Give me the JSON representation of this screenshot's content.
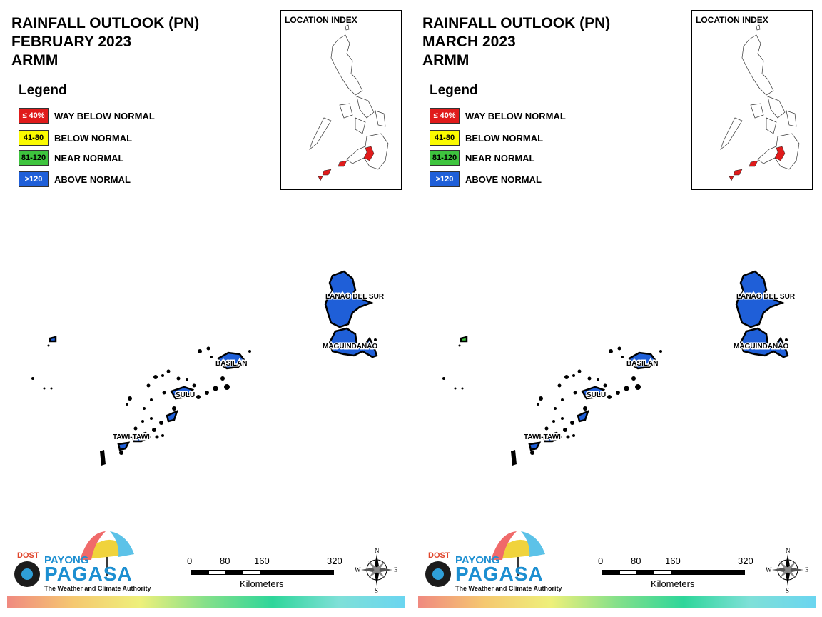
{
  "panels": [
    {
      "title_line1": "RAINFALL OUTLOOK (PN)",
      "title_line2": "FEBRUARY 2023",
      "title_line3": "ARMM"
    },
    {
      "title_line1": "RAINFALL OUTLOOK (PN)",
      "title_line2": "MARCH 2023",
      "title_line3": "ARMM"
    }
  ],
  "legend": {
    "heading": "Legend",
    "items": [
      {
        "code": "≤ 40%",
        "label": "WAY BELOW NORMAL",
        "color": "#e01b1b",
        "text_color": "#ffffff"
      },
      {
        "code": "41-80",
        "label": "BELOW NORMAL",
        "color": "#fafa00",
        "text_color": "#000000"
      },
      {
        "code": "81-120",
        "label": "NEAR NORMAL",
        "color": "#3ec43e",
        "text_color": "#000000"
      },
      {
        "code": ">120",
        "label": "ABOVE NORMAL",
        "color": "#1f5fd8",
        "text_color": "#ffffff"
      }
    ]
  },
  "location_index": {
    "title": "LOCATION INDEX",
    "highlight_color": "#e01b1b"
  },
  "regions": {
    "lanao": "LANAO DEL SUR",
    "maguindanao": "MAGUINDANAO",
    "basilan": "BASILAN",
    "sulu": "SULU",
    "tawi": "TAWI-TAWI",
    "fill_color": "#1f5fd8"
  },
  "scale": {
    "ticks": [
      "0",
      "80",
      "160",
      "320"
    ],
    "unit": "Kilometers"
  },
  "compass": {
    "n": "N",
    "s": "S",
    "e": "E",
    "w": "W"
  },
  "logo": {
    "dost": "DOST",
    "payong": "PAYONG",
    "pagasa": "PAGASA",
    "tagline": "The Weather and Climate Authority"
  }
}
